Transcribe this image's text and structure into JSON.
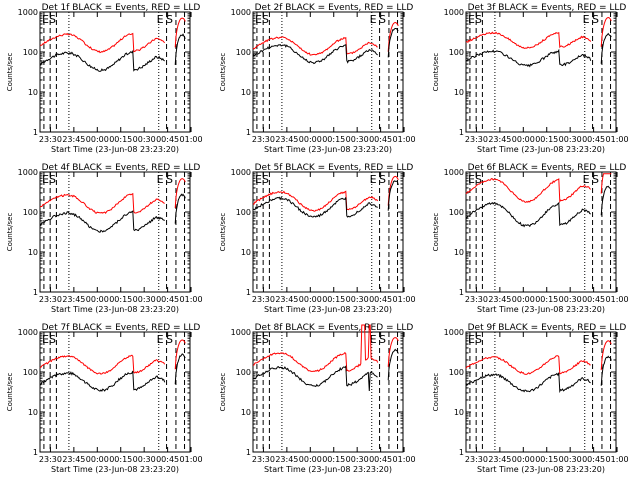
{
  "figure": {
    "ylabel": "Counts/sec",
    "xlabel": "Start Time (23-Jun-08 23:23:20)",
    "x_ticks": [
      "23:30",
      "23:45",
      "00:00",
      "00:15",
      "00:30",
      "00:45",
      "01:00"
    ],
    "y_ticks": [
      "1",
      "10",
      "100",
      "1000"
    ],
    "marker_labels": [
      "E",
      "S"
    ],
    "colors": {
      "events": "#000000",
      "lld": "#ff0000"
    }
  },
  "chart_data": [
    {
      "type": "line",
      "title": "Det 1f BLACK = Events, RED = LLD",
      "xlabel": "Start Time (23-Jun-08 23:23:20)",
      "ylabel": "Counts/sec",
      "x_unit": "minutes after 23:23:20",
      "xlim": [
        0,
        96
      ],
      "ylim": [
        1,
        1000
      ],
      "y_log": true,
      "events_peak1": 95,
      "events_trough": 35,
      "events_peak2": 100,
      "lld_ratio": 2.9,
      "spike_events": null,
      "spike_lld": null,
      "series": [
        {
          "name": "Events",
          "color": "#000000"
        },
        {
          "name": "LLD",
          "color": "#ff0000"
        }
      ],
      "markers": [
        {
          "label": "E",
          "x": 81.0
        },
        {
          "label": "S",
          "x": 87.0
        }
      ]
    },
    {
      "type": "line",
      "title": "Det 2f BLACK = Events, RED = LLD",
      "xlabel": "Start Time (23-Jun-08 23:23:20)",
      "ylabel": "Counts/sec",
      "x_unit": "minutes after 23:23:20",
      "xlim": [
        0,
        96
      ],
      "ylim": [
        1,
        1000
      ],
      "y_log": true,
      "events_peak1": 150,
      "events_trough": 55,
      "events_peak2": 145,
      "lld_ratio": 1.55,
      "spike_events": null,
      "spike_lld": null,
      "series": [
        {
          "name": "Events",
          "color": "#000000"
        },
        {
          "name": "LLD",
          "color": "#ff0000"
        }
      ],
      "markers": [
        {
          "label": "E",
          "x": 81.0
        },
        {
          "label": "S",
          "x": 87.0
        }
      ]
    },
    {
      "type": "line",
      "title": "Det 3f BLACK = Events, RED = LLD",
      "xlabel": "Start Time (23-Jun-08 23:23:20)",
      "ylabel": "Counts/sec",
      "x_unit": "minutes after 23:23:20",
      "xlim": [
        0,
        96
      ],
      "ylim": [
        1,
        1000
      ],
      "y_log": true,
      "events_peak1": 105,
      "events_trough": 45,
      "events_peak2": 105,
      "lld_ratio": 2.85,
      "spike_events": null,
      "spike_lld": null,
      "series": [
        {
          "name": "Events",
          "color": "#000000"
        },
        {
          "name": "LLD",
          "color": "#ff0000"
        }
      ],
      "markers": [
        {
          "label": "E",
          "x": 81.0
        },
        {
          "label": "S",
          "x": 87.0
        }
      ]
    },
    {
      "type": "line",
      "title": "Det 4f BLACK = Events, RED = LLD",
      "xlabel": "Start Time (23-Jun-08 23:23:20)",
      "ylabel": "Counts/sec",
      "x_unit": "minutes after 23:23:20",
      "xlim": [
        0,
        96
      ],
      "ylim": [
        1,
        1000
      ],
      "y_log": true,
      "events_peak1": 95,
      "events_trough": 33,
      "events_peak2": 100,
      "lld_ratio": 2.8,
      "spike_events": null,
      "spike_lld": null,
      "series": [
        {
          "name": "Events",
          "color": "#000000"
        },
        {
          "name": "LLD",
          "color": "#ff0000"
        }
      ],
      "markers": [
        {
          "label": "E",
          "x": 81.0
        },
        {
          "label": "S",
          "x": 87.0
        }
      ]
    },
    {
      "type": "line",
      "title": "Det 5f BLACK = Events, RED = LLD",
      "xlabel": "Start Time (23-Jun-08 23:23:20)",
      "ylabel": "Counts/sec",
      "x_unit": "minutes after 23:23:20",
      "xlim": [
        0,
        96
      ],
      "ylim": [
        1,
        1000
      ],
      "y_log": true,
      "events_peak1": 220,
      "events_trough": 75,
      "events_peak2": 220,
      "lld_ratio": 1.45,
      "spike_events": null,
      "spike_lld": null,
      "series": [
        {
          "name": "Events",
          "color": "#000000"
        },
        {
          "name": "LLD",
          "color": "#ff0000"
        }
      ],
      "markers": [
        {
          "label": "E",
          "x": 81.0
        },
        {
          "label": "S",
          "x": 87.0
        }
      ]
    },
    {
      "type": "line",
      "title": "Det 6f BLACK = Events, RED = LLD",
      "xlabel": "Start Time (23-Jun-08 23:23:20)",
      "ylabel": "Counts/sec",
      "x_unit": "minutes after 23:23:20",
      "xlim": [
        0,
        96
      ],
      "ylim": [
        1,
        1000
      ],
      "y_log": true,
      "events_peak1": 165,
      "events_trough": 45,
      "events_peak2": 160,
      "lld_ratio": 4.0,
      "spike_events": null,
      "spike_lld": null,
      "series": [
        {
          "name": "Events",
          "color": "#000000"
        },
        {
          "name": "LLD",
          "color": "#ff0000"
        }
      ],
      "markers": [
        {
          "label": "E",
          "x": 81.0
        },
        {
          "label": "S",
          "x": 87.0
        }
      ]
    },
    {
      "type": "line",
      "title": "Det 7f BLACK = Events, RED = LLD",
      "xlabel": "Start Time (23-Jun-08 23:23:20)",
      "ylabel": "Counts/sec",
      "x_unit": "minutes after 23:23:20",
      "xlim": [
        0,
        96
      ],
      "ylim": [
        1,
        1000
      ],
      "y_log": true,
      "events_peak1": 95,
      "events_trough": 35,
      "events_peak2": 100,
      "lld_ratio": 2.6,
      "spike_events": null,
      "spike_lld": null,
      "series": [
        {
          "name": "Events",
          "color": "#000000"
        },
        {
          "name": "LLD",
          "color": "#ff0000"
        }
      ],
      "markers": [
        {
          "label": "E",
          "x": 81.0
        },
        {
          "label": "S",
          "x": 87.0
        }
      ]
    },
    {
      "type": "line",
      "title": "Det 8f BLACK = Events, RED = LLD",
      "xlabel": "Start Time (23-Jun-08 23:23:20)",
      "ylabel": "Counts/sec",
      "x_unit": "minutes after 23:23:20",
      "xlim": [
        0,
        96
      ],
      "ylim": [
        1,
        1000
      ],
      "y_log": true,
      "events_peak1": 130,
      "events_trough": 45,
      "events_peak2": 130,
      "lld_ratio": 2.3,
      "spike_events": [
        66,
        80
      ],
      "spike_lld": [
        69,
        76
      ],
      "series": [
        {
          "name": "Events",
          "color": "#000000"
        },
        {
          "name": "LLD",
          "color": "#ff0000"
        }
      ],
      "markers": [
        {
          "label": "E",
          "x": 81.0
        },
        {
          "label": "S",
          "x": 87.0
        }
      ]
    },
    {
      "type": "line",
      "title": "Det 9f BLACK = Events, RED = LLD",
      "xlabel": "Start Time (23-Jun-08 23:23:20)",
      "ylabel": "Counts/sec",
      "x_unit": "minutes after 23:23:20",
      "xlim": [
        0,
        96
      ],
      "ylim": [
        1,
        1000
      ],
      "y_log": true,
      "events_peak1": 85,
      "events_trough": 33,
      "events_peak2": 90,
      "lld_ratio": 2.75,
      "spike_events": null,
      "spike_lld": null,
      "series": [
        {
          "name": "Events",
          "color": "#000000"
        },
        {
          "name": "LLD",
          "color": "#ff0000"
        }
      ],
      "markers": [
        {
          "label": "E",
          "x": 81.0
        },
        {
          "label": "S",
          "x": 87.0
        }
      ]
    }
  ]
}
